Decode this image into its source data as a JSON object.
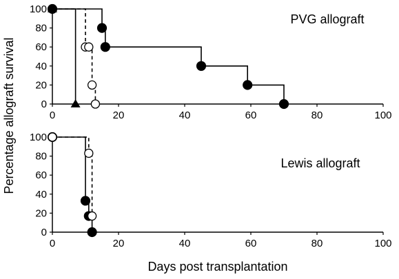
{
  "chart_data": [
    {
      "type": "line",
      "subtype": "kaplan-meier-step",
      "title": "PVG allograft",
      "xlabel": "Days post transplantation",
      "ylabel": "Percentage allograft survival",
      "xlim": [
        0,
        100
      ],
      "ylim": [
        0,
        100
      ],
      "xticks": [
        0,
        20,
        40,
        60,
        80,
        100
      ],
      "yticks": [
        0,
        20,
        40,
        60,
        80,
        100
      ],
      "grid": false,
      "series": [
        {
          "marker": "filled-triangle",
          "line": "solid",
          "color": "#000000",
          "x": [
            0,
            7
          ],
          "y": [
            100,
            0
          ]
        },
        {
          "marker": "open-circle",
          "line": "dashed",
          "color": "#000000",
          "x": [
            0,
            10,
            11,
            12,
            13
          ],
          "y": [
            100,
            60,
            60,
            20,
            0
          ]
        },
        {
          "marker": "filled-circle",
          "line": "solid",
          "color": "#000000",
          "x": [
            0,
            15,
            16,
            45,
            59,
            70
          ],
          "y": [
            100,
            80,
            60,
            40,
            20,
            0
          ]
        }
      ]
    },
    {
      "type": "line",
      "subtype": "kaplan-meier-step",
      "title": "Lewis allograft",
      "xlabel": "Days post transplantation",
      "ylabel": "Percentage allograft survival",
      "xlim": [
        0,
        100
      ],
      "ylim": [
        0,
        100
      ],
      "xticks": [
        0,
        20,
        40,
        60,
        80,
        100
      ],
      "yticks": [
        0,
        20,
        40,
        60,
        80,
        100
      ],
      "grid": false,
      "series": [
        {
          "marker": "filled-circle",
          "line": "solid",
          "color": "#000000",
          "x": [
            0,
            10,
            11,
            12
          ],
          "y": [
            100,
            33,
            17,
            0
          ]
        },
        {
          "marker": "open-circle",
          "line": "dashed",
          "color": "#000000",
          "x": [
            0,
            11,
            12
          ],
          "y": [
            100,
            83,
            17
          ]
        }
      ]
    }
  ]
}
